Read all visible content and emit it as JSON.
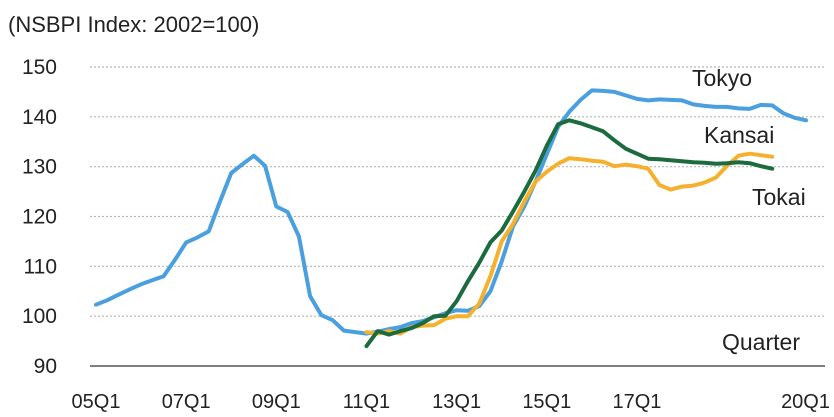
{
  "chart_data": {
    "type": "line",
    "title": "(NSBPI Index: 2002=100)",
    "xlabel": "Quarter",
    "ylabel": "",
    "ylim": [
      90,
      150
    ],
    "y_ticks": [
      90,
      100,
      110,
      120,
      130,
      140,
      150
    ],
    "x_tick_labels": [
      "05Q1",
      "07Q1",
      "09Q1",
      "11Q1",
      "13Q1",
      "15Q1",
      "17Q1",
      "20Q1"
    ],
    "x_tick_indices": [
      0,
      8,
      16,
      24,
      32,
      40,
      48,
      60
    ],
    "grid": true,
    "series": [
      {
        "name": "Tokyo",
        "color": "#4A9FDF",
        "start_index": 0,
        "values": [
          102.3,
          103.2,
          104.3,
          105.4,
          106.4,
          107.2,
          108.0,
          111.3,
          114.8,
          115.8,
          117.0,
          123.0,
          128.7,
          130.5,
          132.2,
          130.2,
          122.0,
          120.9,
          116.0,
          104.0,
          100.2,
          99.2,
          97.1,
          96.8,
          96.5,
          96.9,
          97.4,
          97.8,
          98.6,
          99.0,
          99.8,
          100.6,
          101.2,
          101.1,
          102.0,
          105.0,
          111.0,
          118.0,
          122.0,
          127.0,
          132.5,
          138.0,
          141.0,
          143.4,
          145.3,
          145.2,
          145.0,
          144.3,
          143.6,
          143.3,
          143.5,
          143.4,
          143.3,
          142.5,
          142.2,
          142.0,
          142.0,
          141.7,
          141.6,
          142.4,
          142.3,
          140.7,
          139.8,
          139.3
        ]
      },
      {
        "name": "Kansai",
        "color": "#1B6B3E",
        "start_index": 24,
        "values": [
          94.0,
          97.0,
          96.3,
          97.0,
          97.6,
          98.6,
          100.0,
          100.1,
          103.0,
          107.0,
          110.7,
          114.8,
          117.2,
          121.0,
          125.0,
          129.2,
          134.2,
          138.5,
          139.3,
          138.7,
          137.9,
          137.1,
          135.3,
          133.6,
          132.6,
          131.6,
          131.5,
          131.3,
          131.1,
          130.9,
          130.8,
          130.6,
          130.7,
          130.9,
          130.7,
          130.1,
          129.6
        ]
      },
      {
        "name": "Tokai",
        "color": "#F5B12E",
        "start_index": 24,
        "values": [
          96.8,
          96.5,
          97.0,
          96.5,
          97.8,
          98.1,
          98.2,
          99.5,
          100.0,
          100.0,
          102.5,
          108.0,
          115.0,
          118.5,
          123.0,
          127.0,
          129.0,
          130.6,
          131.7,
          131.5,
          131.2,
          131.0,
          130.1,
          130.4,
          130.1,
          129.6,
          126.3,
          125.4,
          126.0,
          126.2,
          126.8,
          127.8,
          130.2,
          132.2,
          132.6,
          132.3,
          132.0
        ]
      }
    ]
  }
}
